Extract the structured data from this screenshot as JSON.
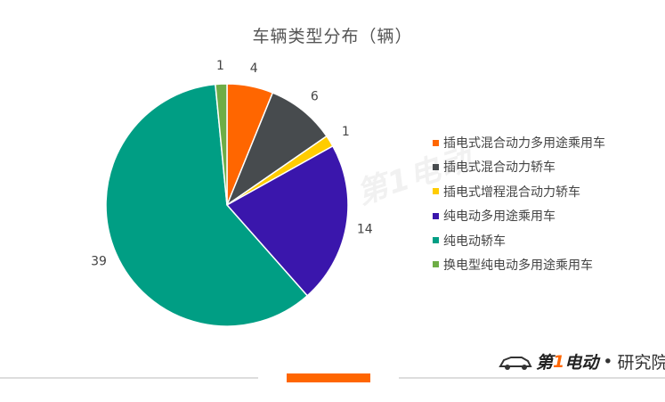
{
  "chart_data": {
    "type": "pie",
    "title": "车辆类型分布（辆）",
    "slices": [
      {
        "name": "插电式混合动力多用途乘用车",
        "value": 4,
        "color": "#FF6600"
      },
      {
        "name": "插电式混合动力轿车",
        "value": 6,
        "color": "#474B4E"
      },
      {
        "name": "插电式增程混合动力轿车",
        "value": 1,
        "color": "#FFCC00"
      },
      {
        "name": "纯电动多用途乘用车",
        "value": 14,
        "color": "#3A16AC"
      },
      {
        "name": "纯电动轿车",
        "value": 39,
        "color": "#009E84"
      },
      {
        "name": "换电型纯电动多用途乘用车",
        "value": 1,
        "color": "#6EAD46"
      }
    ],
    "start_angle": "top, clockwise",
    "legend_position": "right",
    "data_labels": "values outside slices"
  },
  "footer": {
    "brand_pre": "第",
    "brand_one": "1",
    "brand_post": "电动",
    "separator": "•",
    "suffix": "研究院",
    "accent_color": "#FF6600"
  }
}
